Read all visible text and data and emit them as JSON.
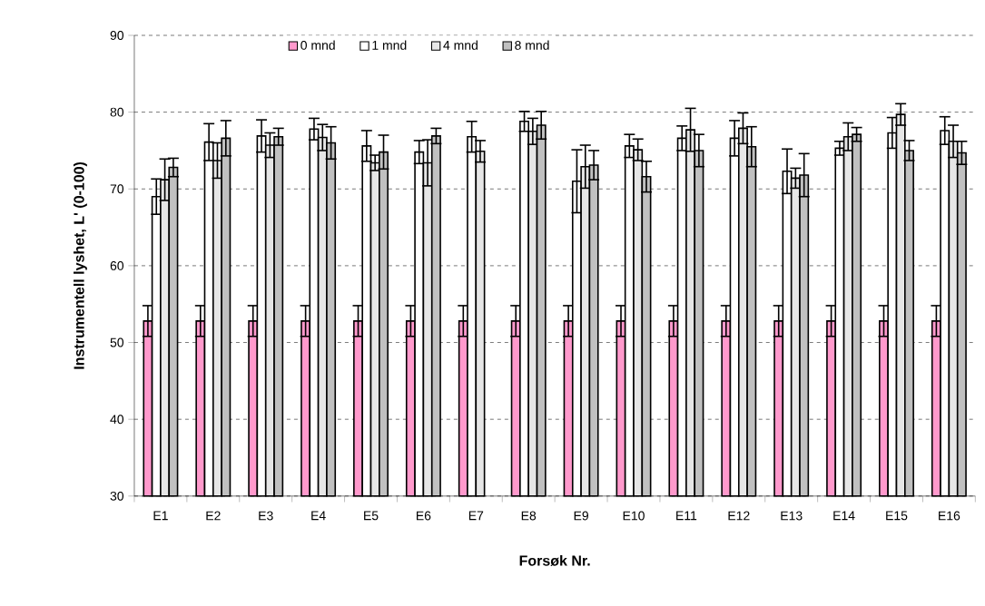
{
  "chart_data": {
    "type": "bar",
    "xlabel": "Forsøk Nr.",
    "ylabel": "Instrumentell lyshet, L' (0-100)",
    "categories": [
      "E1",
      "E2",
      "E3",
      "E4",
      "E5",
      "E6",
      "E7",
      "E8",
      "E9",
      "E10",
      "E11",
      "E12",
      "E13",
      "E14",
      "E15",
      "E16"
    ],
    "ylim": [
      30,
      90
    ],
    "yticks": [
      30,
      40,
      50,
      60,
      70,
      80,
      90
    ],
    "grid": "y",
    "legend": "top",
    "series": [
      {
        "name": "0 mnd",
        "color": "#ff99cc",
        "values": [
          52.8,
          52.8,
          52.8,
          52.8,
          52.8,
          52.8,
          52.8,
          52.8,
          52.8,
          52.8,
          52.8,
          52.8,
          52.8,
          52.8,
          52.8,
          52.8
        ],
        "errors": [
          2.0,
          2.0,
          2.0,
          2.0,
          2.0,
          2.0,
          2.0,
          2.0,
          2.0,
          2.0,
          2.0,
          2.0,
          2.0,
          2.0,
          2.0,
          2.0
        ]
      },
      {
        "name": "1 mnd",
        "color": "#ffffff",
        "values": [
          69.0,
          76.1,
          76.9,
          77.8,
          75.6,
          74.8,
          76.8,
          78.8,
          71.0,
          75.6,
          76.6,
          76.6,
          72.3,
          75.3,
          77.3,
          77.6
        ],
        "errors": [
          2.3,
          2.4,
          2.1,
          1.4,
          2.0,
          1.5,
          2.0,
          1.3,
          4.1,
          1.5,
          1.6,
          2.3,
          2.9,
          0.9,
          2.0,
          1.8
        ]
      },
      {
        "name": "4 mnd",
        "color": "#e6e6e6",
        "values": [
          71.2,
          73.7,
          75.7,
          76.7,
          73.4,
          73.4,
          74.9,
          77.5,
          72.9,
          75.1,
          77.7,
          77.9,
          71.4,
          76.8,
          79.7,
          76.2
        ],
        "errors": [
          2.7,
          2.3,
          1.6,
          1.7,
          1.0,
          3.0,
          1.4,
          1.7,
          2.8,
          1.4,
          2.8,
          2.0,
          1.3,
          1.8,
          1.4,
          2.1
        ]
      },
      {
        "name": "8 mnd",
        "color": "#c0c0c0",
        "values": [
          72.8,
          76.6,
          76.8,
          76.0,
          74.8,
          76.9,
          null,
          78.3,
          73.1,
          71.6,
          75.0,
          75.5,
          71.8,
          77.1,
          75.0,
          74.7
        ],
        "errors": [
          1.2,
          2.3,
          1.1,
          2.1,
          2.2,
          1.0,
          null,
          1.8,
          1.9,
          2.0,
          2.1,
          2.6,
          2.8,
          0.9,
          1.3,
          1.5
        ]
      }
    ]
  }
}
